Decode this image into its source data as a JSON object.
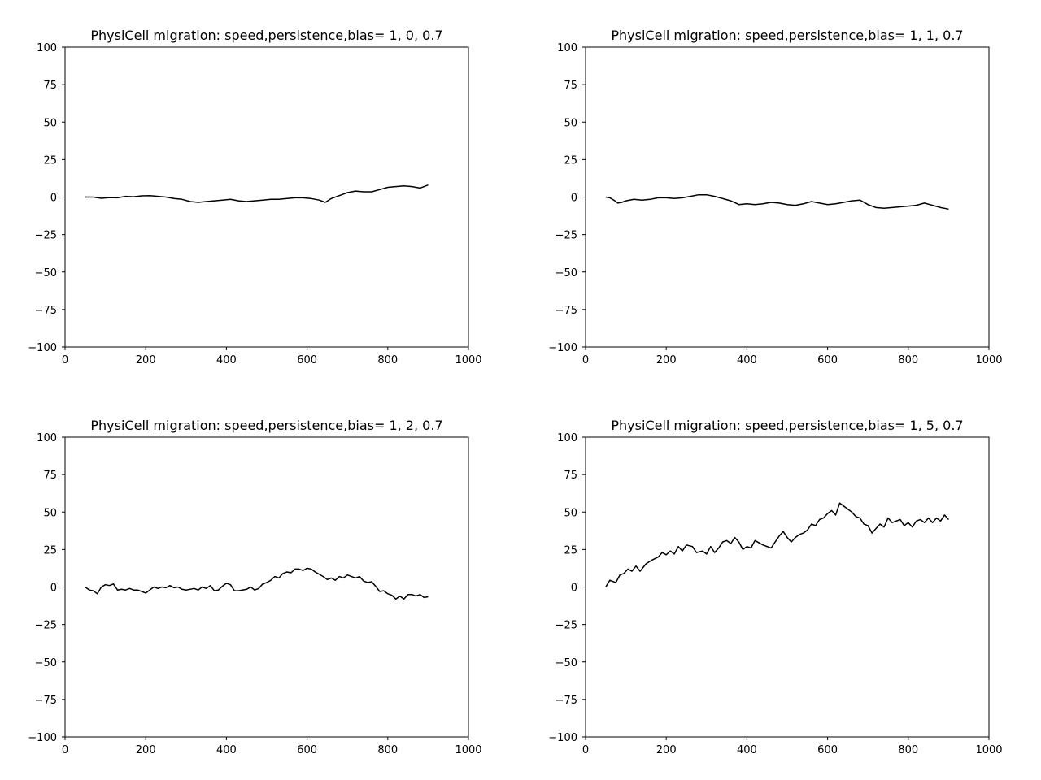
{
  "figure": {
    "background": "#ffffff",
    "line_color": "#000000"
  },
  "chart_data": [
    {
      "type": "line",
      "title": "PhysiCell migration: speed,persistence,bias= 1, 0, 0.7",
      "xlim": [
        0,
        1000
      ],
      "ylim": [
        -100,
        100
      ],
      "xticks": [
        "0",
        "200",
        "400",
        "600",
        "800",
        "1000"
      ],
      "yticks": [
        "100",
        "75",
        "50",
        "25",
        "0",
        "−25",
        "−50",
        "−75",
        "−100"
      ],
      "grid": false,
      "series": [
        {
          "x": [
            50,
            70,
            90,
            110,
            130,
            150,
            170,
            190,
            210,
            230,
            250,
            270,
            290,
            310,
            330,
            350,
            370,
            390,
            410,
            430,
            450,
            470,
            490,
            510,
            530,
            550,
            570,
            590,
            610,
            630,
            645,
            660,
            680,
            700,
            720,
            740,
            760,
            780,
            800,
            820,
            840,
            860,
            880,
            900
          ],
          "y": [
            0,
            0,
            -0.8,
            -0.3,
            -0.5,
            0.5,
            0.2,
            0.8,
            1,
            0.5,
            0,
            -1,
            -1.5,
            -3,
            -3.5,
            -3,
            -2.5,
            -2,
            -1.5,
            -2.5,
            -3,
            -2.5,
            -2,
            -1.5,
            -1.5,
            -1,
            -0.5,
            -0.5,
            -1,
            -2,
            -3.5,
            -1,
            1,
            3,
            4,
            3.5,
            3.5,
            5,
            6.5,
            7,
            7.5,
            7,
            6,
            8
          ]
        }
      ]
    },
    {
      "type": "line",
      "title": "PhysiCell migration: speed,persistence,bias= 1, 1, 0.7",
      "xlim": [
        0,
        1000
      ],
      "ylim": [
        -100,
        100
      ],
      "xticks": [
        "0",
        "200",
        "400",
        "600",
        "800",
        "1000"
      ],
      "yticks": [
        "100",
        "75",
        "50",
        "25",
        "0",
        "−25",
        "−50",
        "−75",
        "−100"
      ],
      "grid": false,
      "series": [
        {
          "x": [
            50,
            60,
            70,
            80,
            90,
            100,
            120,
            140,
            160,
            180,
            200,
            220,
            240,
            260,
            280,
            300,
            320,
            340,
            360,
            380,
            400,
            420,
            440,
            460,
            480,
            500,
            520,
            540,
            560,
            580,
            600,
            620,
            640,
            660,
            680,
            700,
            720,
            740,
            760,
            780,
            800,
            820,
            840,
            860,
            880,
            900
          ],
          "y": [
            0,
            -0.5,
            -2,
            -4,
            -3.5,
            -2.5,
            -1.5,
            -2,
            -1.5,
            -0.5,
            -0.5,
            -1,
            -0.5,
            0.5,
            1.5,
            1.5,
            0.5,
            -1,
            -2.5,
            -5,
            -4.5,
            -5,
            -4.5,
            -3.5,
            -4,
            -5,
            -5.5,
            -4.5,
            -3,
            -4,
            -5,
            -4.5,
            -3.5,
            -2.5,
            -2,
            -5,
            -7,
            -7.5,
            -7,
            -6.5,
            -6,
            -5.5,
            -4,
            -5.5,
            -7,
            -8
          ]
        }
      ]
    },
    {
      "type": "line",
      "title": "PhysiCell migration: speed,persistence,bias= 1, 2, 0.7",
      "xlim": [
        0,
        1000
      ],
      "ylim": [
        -100,
        100
      ],
      "xticks": [
        "0",
        "200",
        "400",
        "600",
        "800",
        "1000"
      ],
      "yticks": [
        "100",
        "75",
        "50",
        "25",
        "0",
        "−25",
        "−50",
        "−75",
        "−100"
      ],
      "grid": false,
      "series": [
        {
          "x": [
            50,
            60,
            70,
            80,
            90,
            100,
            110,
            120,
            130,
            140,
            150,
            160,
            170,
            180,
            190,
            200,
            210,
            220,
            230,
            240,
            250,
            260,
            270,
            280,
            290,
            300,
            310,
            320,
            330,
            340,
            350,
            360,
            370,
            380,
            390,
            400,
            410,
            420,
            430,
            440,
            450,
            460,
            470,
            480,
            490,
            500,
            510,
            520,
            530,
            540,
            550,
            560,
            570,
            580,
            590,
            600,
            610,
            620,
            630,
            640,
            650,
            660,
            670,
            680,
            690,
            700,
            710,
            720,
            730,
            740,
            750,
            760,
            770,
            780,
            790,
            800,
            810,
            820,
            830,
            840,
            850,
            860,
            870,
            880,
            890,
            900
          ],
          "y": [
            0,
            -2,
            -2.5,
            -4.5,
            0,
            1.5,
            1,
            2,
            -2,
            -1.5,
            -2,
            -1,
            -2,
            -2,
            -3,
            -4,
            -2,
            0,
            -1,
            0,
            -0.5,
            1,
            -0.5,
            0,
            -1.5,
            -2,
            -1.5,
            -1,
            -2,
            0,
            -1,
            1,
            -2.5,
            -2,
            0.5,
            2.5,
            1.5,
            -2.5,
            -2.5,
            -2,
            -1.5,
            0,
            -2,
            -1,
            2,
            3,
            4.5,
            7,
            6,
            9,
            10,
            9.5,
            12,
            12,
            11,
            12.5,
            12,
            10,
            8.5,
            7,
            5,
            6,
            4.5,
            7,
            6,
            8,
            7,
            6,
            7,
            4,
            3,
            3.5,
            0.5,
            -3,
            -2.5,
            -4.5,
            -5.5,
            -8,
            -6,
            -8,
            -5,
            -5,
            -6,
            -5,
            -7,
            -6.5
          ]
        }
      ]
    },
    {
      "type": "line",
      "title": "PhysiCell migration: speed,persistence,bias= 1, 5, 0.7",
      "xlim": [
        0,
        1000
      ],
      "ylim": [
        -100,
        100
      ],
      "xticks": [
        "0",
        "200",
        "400",
        "600",
        "800",
        "1000"
      ],
      "yticks": [
        "100",
        "75",
        "50",
        "25",
        "0",
        "−25",
        "−50",
        "−75",
        "−100"
      ],
      "grid": false,
      "series": [
        {
          "x": [
            50,
            60,
            75,
            85,
            95,
            105,
            115,
            125,
            135,
            150,
            165,
            180,
            190,
            200,
            210,
            220,
            230,
            240,
            250,
            265,
            275,
            290,
            300,
            310,
            320,
            330,
            340,
            350,
            360,
            370,
            380,
            390,
            400,
            410,
            420,
            440,
            460,
            470,
            480,
            490,
            500,
            510,
            520,
            530,
            540,
            550,
            560,
            570,
            580,
            590,
            600,
            610,
            620,
            630,
            640,
            650,
            660,
            670,
            680,
            690,
            700,
            710,
            720,
            730,
            740,
            750,
            760,
            770,
            780,
            790,
            800,
            810,
            820,
            830,
            840,
            850,
            860,
            870,
            880,
            890,
            900
          ],
          "y": [
            0,
            4.5,
            3,
            8,
            9,
            12,
            10.5,
            14,
            10.5,
            15.5,
            18,
            20,
            23,
            21.5,
            24,
            22,
            27,
            24,
            28,
            27,
            23,
            24,
            22,
            27,
            23,
            26,
            30,
            31,
            29,
            33,
            30,
            25,
            27,
            26,
            31,
            28,
            26,
            30,
            34,
            37,
            33,
            30,
            33,
            35,
            36,
            38,
            42,
            41,
            45,
            46,
            49,
            51,
            48,
            56,
            54,
            52,
            50,
            47,
            46,
            42,
            41,
            36,
            39,
            42,
            40,
            46,
            43,
            44,
            45,
            41,
            43,
            40,
            44,
            45,
            43,
            46,
            43,
            46,
            44,
            48,
            45
          ]
        }
      ]
    }
  ]
}
